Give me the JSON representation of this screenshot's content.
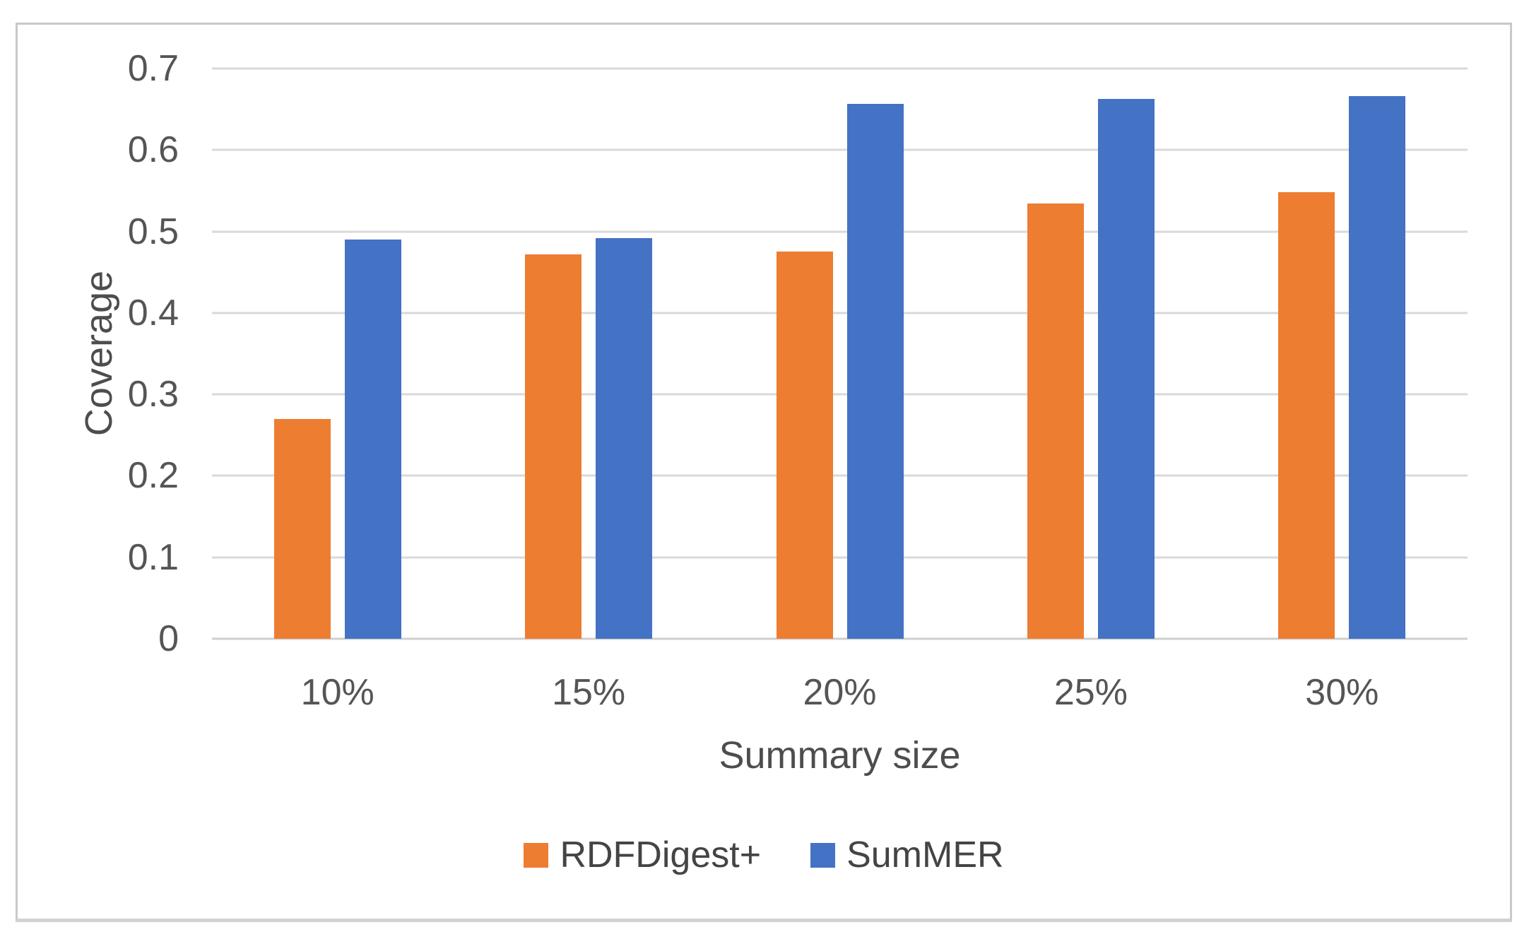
{
  "chart_data": {
    "type": "bar",
    "title": "",
    "xlabel": "Summary size",
    "ylabel": "Coverage",
    "categories": [
      "10%",
      "15%",
      "20%",
      "25%",
      "30%"
    ],
    "series": [
      {
        "name": "RDFDigest+",
        "color": "#ED7D31",
        "values": [
          0.27,
          0.472,
          0.475,
          0.534,
          0.548
        ]
      },
      {
        "name": "SumMER",
        "color": "#4472C4",
        "values": [
          0.49,
          0.492,
          0.657,
          0.663,
          0.666
        ]
      }
    ],
    "ylim": [
      0,
      0.7
    ],
    "ytick_step": 0.1,
    "ytick_labels": [
      "0",
      "0.1",
      "0.2",
      "0.3",
      "0.4",
      "0.5",
      "0.6",
      "0.7"
    ],
    "grid": true,
    "gridline_color": "#d9d9d9",
    "legend_position": "bottom",
    "figure_border_color": "#c9c9c9",
    "text_color": "#555555"
  }
}
